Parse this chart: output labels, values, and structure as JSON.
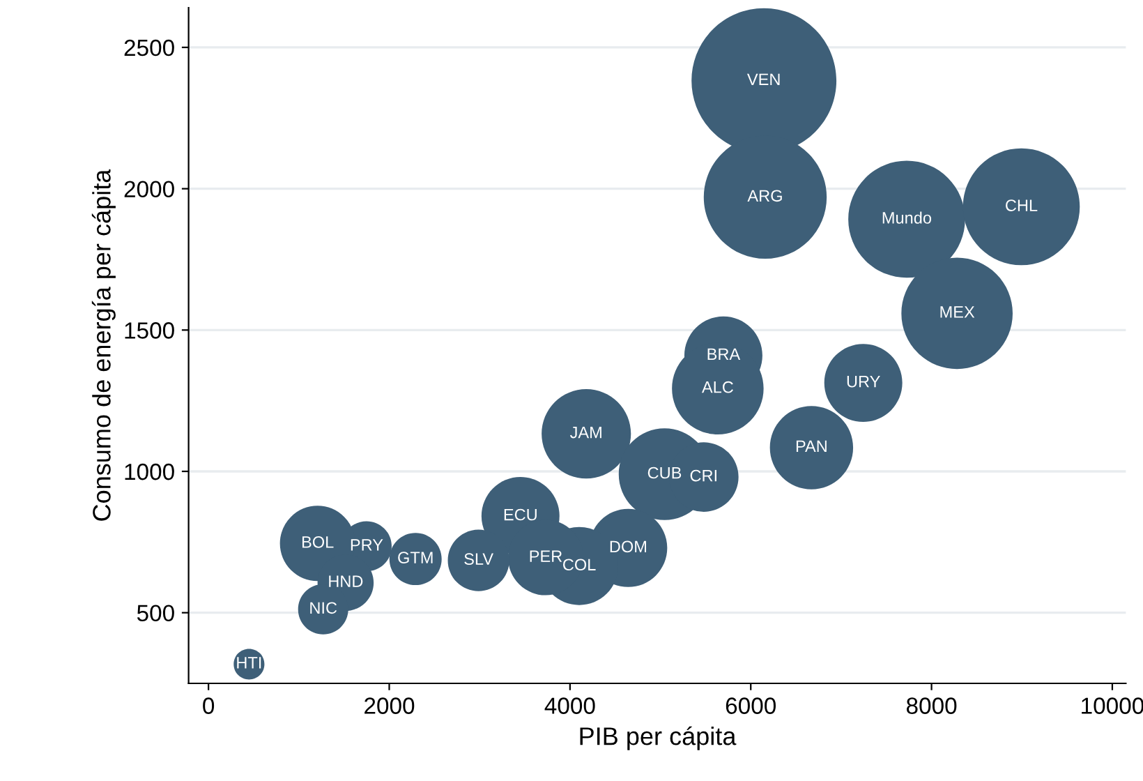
{
  "chart_data": {
    "type": "bubble",
    "xlabel": "PIB per cápita",
    "ylabel": "Consumo de energía per cápita",
    "x": [
      6146,
      6160,
      7725,
      8994,
      8282,
      7245,
      6672,
      5697,
      5635,
      4180,
      5046,
      5480,
      3452,
      4644,
      4102,
      3731,
      2988,
      2291,
      1749,
      1207,
      1517,
      1269,
      449
    ],
    "series": [
      {
        "color": "#3e5f78",
        "values": [
          2382,
          1970,
          1892,
          1936,
          1559,
          1313,
          1084,
          1410,
          1293,
          1133,
          990,
          980,
          842,
          729,
          665,
          695,
          685,
          690,
          735,
          745,
          606,
          512,
          318
        ],
        "sizes": [
          1,
          0.72,
          0.65,
          0.65,
          0.59,
          0.29,
          0.33,
          0.29,
          0.4,
          0.38,
          0.4,
          0.23,
          0.29,
          0.29,
          0.29,
          0.27,
          0.18,
          0.13,
          0.12,
          0.27,
          0.15,
          0.12,
          0.045
        ]
      }
    ],
    "annotations": [
      {
        "text": "VEN",
        "x": 6146,
        "y": 2382
      },
      {
        "text": "ARG",
        "x": 6160,
        "y": 1970
      },
      {
        "text": "Mundo",
        "x": 7725,
        "y": 1892
      },
      {
        "text": "CHL",
        "x": 8994,
        "y": 1936
      },
      {
        "text": "MEX",
        "x": 8282,
        "y": 1559
      },
      {
        "text": "URY",
        "x": 7245,
        "y": 1313
      },
      {
        "text": "PAN",
        "x": 6672,
        "y": 1084
      },
      {
        "text": "BRA",
        "x": 5697,
        "y": 1410
      },
      {
        "text": "ALC",
        "x": 5635,
        "y": 1293
      },
      {
        "text": "JAM",
        "x": 4180,
        "y": 1133
      },
      {
        "text": "CUB",
        "x": 5046,
        "y": 990
      },
      {
        "text": "CRI",
        "x": 5480,
        "y": 980
      },
      {
        "text": "ECU",
        "x": 3452,
        "y": 842
      },
      {
        "text": "DOM",
        "x": 4644,
        "y": 729
      },
      {
        "text": "COL",
        "x": 4102,
        "y": 665
      },
      {
        "text": "PER",
        "x": 3731,
        "y": 695
      },
      {
        "text": "SLV",
        "x": 2988,
        "y": 685
      },
      {
        "text": "GTM",
        "x": 2291,
        "y": 690
      },
      {
        "text": "PRY",
        "x": 1749,
        "y": 735
      },
      {
        "text": "BOL",
        "x": 1207,
        "y": 745
      },
      {
        "text": "HND",
        "x": 1517,
        "y": 606
      },
      {
        "text": "NIC",
        "x": 1269,
        "y": 512
      },
      {
        "text": "HTI",
        "x": 449,
        "y": 318
      }
    ],
    "xlim": [
      -220,
      10150
    ],
    "ylim": [
      250,
      2640
    ],
    "xticks": [
      0,
      2000,
      4000,
      6000,
      8000,
      10000
    ],
    "yticks": [
      500,
      1000,
      1500,
      2000,
      2500
    ],
    "grid": "y"
  }
}
